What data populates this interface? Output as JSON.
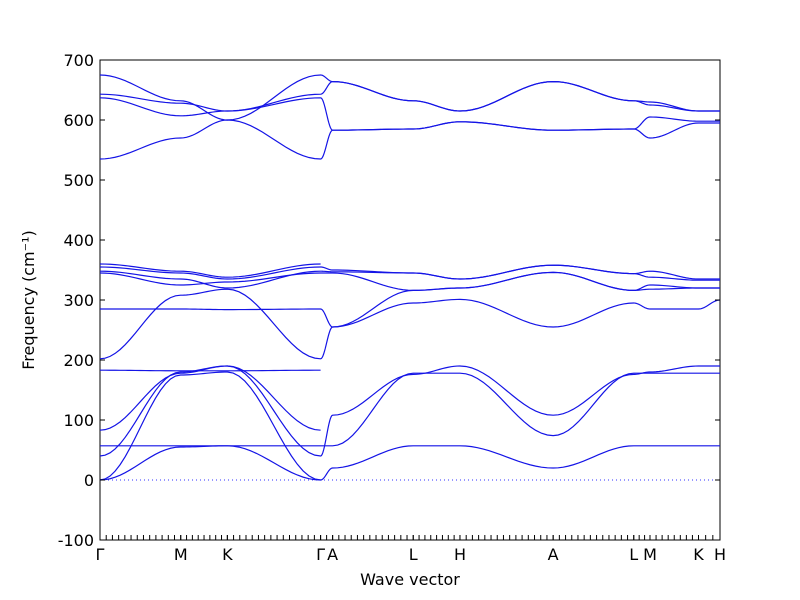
{
  "chart_data": {
    "type": "line",
    "xlabel": "Wave vector",
    "ylabel": "Frequency (cm⁻¹)",
    "ylim": [
      -100,
      700
    ],
    "yticks": [
      -100,
      0,
      100,
      200,
      300,
      400,
      500,
      600,
      700
    ],
    "path_labels": [
      "Γ",
      "M",
      "K",
      "Γ",
      "A",
      "L",
      "H",
      "A",
      "L",
      "M",
      "K",
      "H"
    ],
    "path_positions": [
      0,
      0.1302,
      0.2054,
      0.3558,
      0.3752,
      0.5052,
      0.5806,
      0.7309,
      0.8609,
      0.8871,
      0.9653,
      1.0
    ],
    "zero_line": true,
    "series": [
      {
        "x": [
          0,
          0.13,
          0.2054,
          0.3558
        ],
        "values": [
          0,
          55,
          57,
          0
        ]
      },
      {
        "x": [
          0,
          0.13,
          0.2054,
          0.3558,
          0.3752,
          0.5052,
          0.5806,
          0.7309,
          0.8609,
          0.8871,
          0.9653,
          1.0
        ],
        "values": [
          0,
          175,
          180,
          0,
          20,
          57,
          57,
          20,
          57,
          57,
          57,
          57
        ]
      },
      {
        "x": [
          0,
          0.13,
          0.2054,
          0.3558,
          0.3752,
          0.5052,
          0.5806,
          0.7309,
          0.8609,
          0.8871,
          0.9653,
          1.0
        ],
        "values": [
          40,
          180,
          190,
          40,
          108,
          176,
          190,
          108,
          176,
          180,
          190,
          190
        ]
      },
      {
        "x": [
          0,
          0.13,
          0.2054,
          0.3558,
          0.3752,
          0.5052,
          0.5806,
          0.7309,
          0.8609,
          0.8871,
          0.9653,
          1.0
        ],
        "values": [
          57,
          57,
          57,
          57,
          57,
          178,
          178,
          74,
          178,
          178,
          178,
          178
        ]
      },
      {
        "x": [
          0,
          0.13,
          0.2054,
          0.3558
        ],
        "values": [
          83,
          178,
          190,
          83
        ]
      },
      {
        "x": [
          0,
          0.13,
          0.2054,
          0.3558
        ],
        "values": [
          183,
          182,
          182,
          183
        ]
      },
      {
        "x": [
          0,
          0.13,
          0.2054,
          0.3558,
          0.3752,
          0.5052,
          0.5806,
          0.7309,
          0.8609,
          0.8871,
          0.9653,
          1.0
        ],
        "values": [
          202,
          308,
          318,
          202,
          255,
          295,
          301,
          255,
          295,
          285,
          285,
          300
        ]
      },
      {
        "x": [
          0,
          0.13,
          0.2054,
          0.3558,
          0.3752,
          0.5052,
          0.5806,
          0.7309,
          0.8609,
          0.8871,
          0.9653,
          1.0
        ],
        "values": [
          285,
          285,
          284,
          285,
          255,
          316,
          320,
          346,
          316,
          318,
          320,
          320
        ]
      },
      {
        "x": [
          0,
          0.13,
          0.2054,
          0.3558,
          0.3752,
          0.5052,
          0.5806,
          0.7309,
          0.8609,
          0.8871,
          0.9653,
          1.0
        ],
        "values": [
          345,
          325,
          330,
          345,
          345,
          316,
          320,
          346,
          316,
          325,
          320,
          320
        ]
      },
      {
        "x": [
          0,
          0.13,
          0.2054,
          0.3558,
          0.3752,
          0.5052,
          0.5806,
          0.7309,
          0.8609,
          0.8871,
          0.9653,
          1.0
        ],
        "values": [
          348,
          335,
          320,
          348,
          347,
          345,
          335,
          358,
          344,
          338,
          333,
          333
        ]
      },
      {
        "x": [
          0,
          0.13,
          0.2054,
          0.3558,
          0.3752,
          0.5052,
          0.5806,
          0.7309,
          0.8609,
          0.8871,
          0.9653,
          1.0
        ],
        "values": [
          355,
          345,
          335,
          355,
          350,
          345,
          335,
          358,
          344,
          348,
          335,
          335
        ]
      },
      {
        "x": [
          0,
          0.13,
          0.2054,
          0.3558
        ],
        "values": [
          360,
          348,
          338,
          360
        ]
      },
      {
        "x": [
          0,
          0.13,
          0.2054,
          0.3558,
          0.3752,
          0.5052,
          0.5806,
          0.7309,
          0.8609,
          0.8871,
          0.9653,
          1.0
        ],
        "values": [
          535,
          570,
          600,
          535,
          583,
          585,
          597,
          583,
          585,
          570,
          595,
          595
        ]
      },
      {
        "x": [
          0,
          0.13,
          0.2054,
          0.3558,
          0.3752,
          0.5052,
          0.5806,
          0.7309,
          0.8609,
          0.8871,
          0.9653,
          1.0
        ],
        "values": [
          637,
          607,
          615,
          637,
          583,
          585,
          597,
          583,
          585,
          605,
          598,
          598
        ]
      },
      {
        "x": [
          0,
          0.13,
          0.2054,
          0.3558,
          0.3752,
          0.5052,
          0.5806,
          0.7309,
          0.8609,
          0.8871,
          0.9653,
          1.0
        ],
        "values": [
          643,
          628,
          615,
          643,
          664,
          632,
          615,
          664,
          632,
          625,
          615,
          615
        ]
      },
      {
        "x": [
          0,
          0.13,
          0.2054,
          0.3558,
          0.3752,
          0.5052,
          0.5806,
          0.7309,
          0.8609,
          0.8871,
          0.9653,
          1.0
        ],
        "values": [
          675,
          632,
          600,
          675,
          664,
          632,
          615,
          664,
          632,
          630,
          615,
          615
        ]
      }
    ]
  }
}
